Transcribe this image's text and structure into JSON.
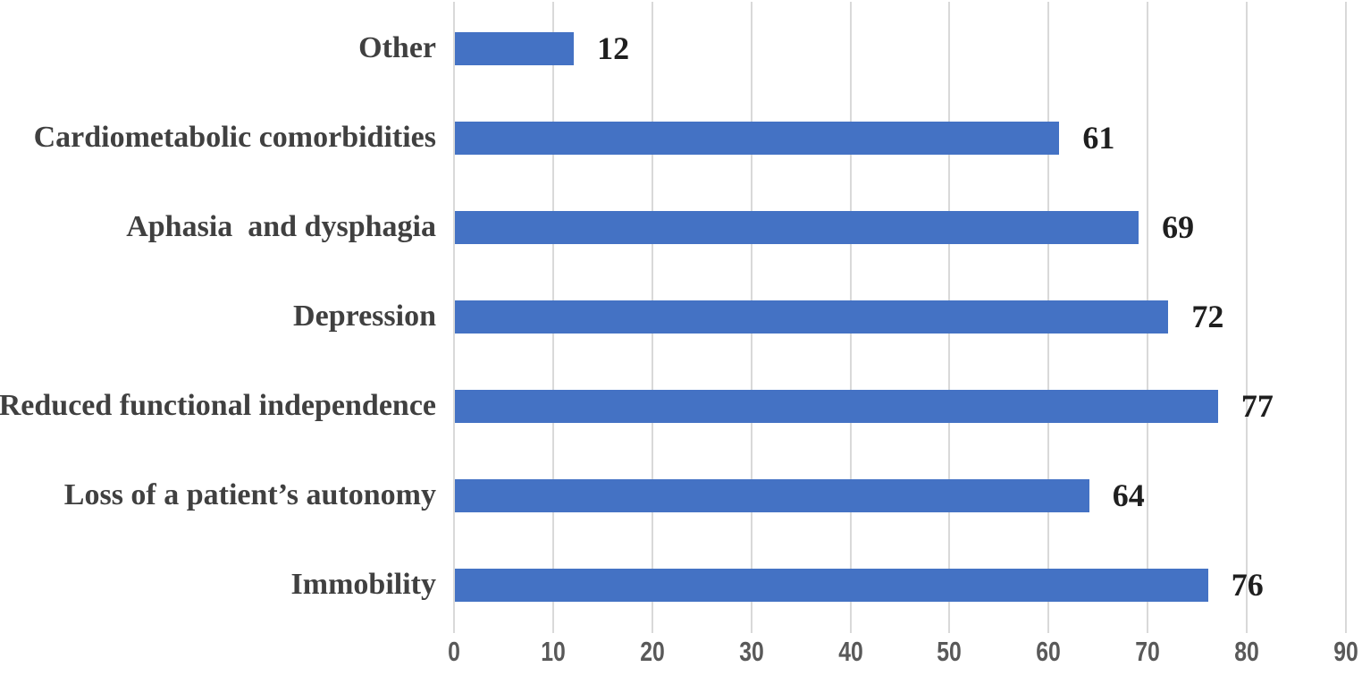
{
  "chart_data": {
    "type": "bar",
    "orientation": "horizontal",
    "title": "",
    "xlabel": "",
    "ylabel": "",
    "categories": [
      "Other",
      "Cardiometabolic comorbidities",
      "Aphasia  and dysphagia",
      "Depression",
      "Reduced functional independence",
      "Loss of a patient’s autonomy",
      "Immobility"
    ],
    "values": [
      12,
      61,
      69,
      72,
      77,
      64,
      76
    ],
    "xlim": [
      0,
      90
    ],
    "x_ticks": [
      0,
      10,
      20,
      30,
      40,
      50,
      60,
      70,
      80,
      90
    ],
    "grid": true,
    "legend": false,
    "colors": {
      "bar": "#4472C4",
      "gridline": "#D9D9D9",
      "category_label": "#404040",
      "value_label": "#1f1f1f",
      "tick_label": "#595959",
      "background": "#FFFFFF"
    }
  }
}
